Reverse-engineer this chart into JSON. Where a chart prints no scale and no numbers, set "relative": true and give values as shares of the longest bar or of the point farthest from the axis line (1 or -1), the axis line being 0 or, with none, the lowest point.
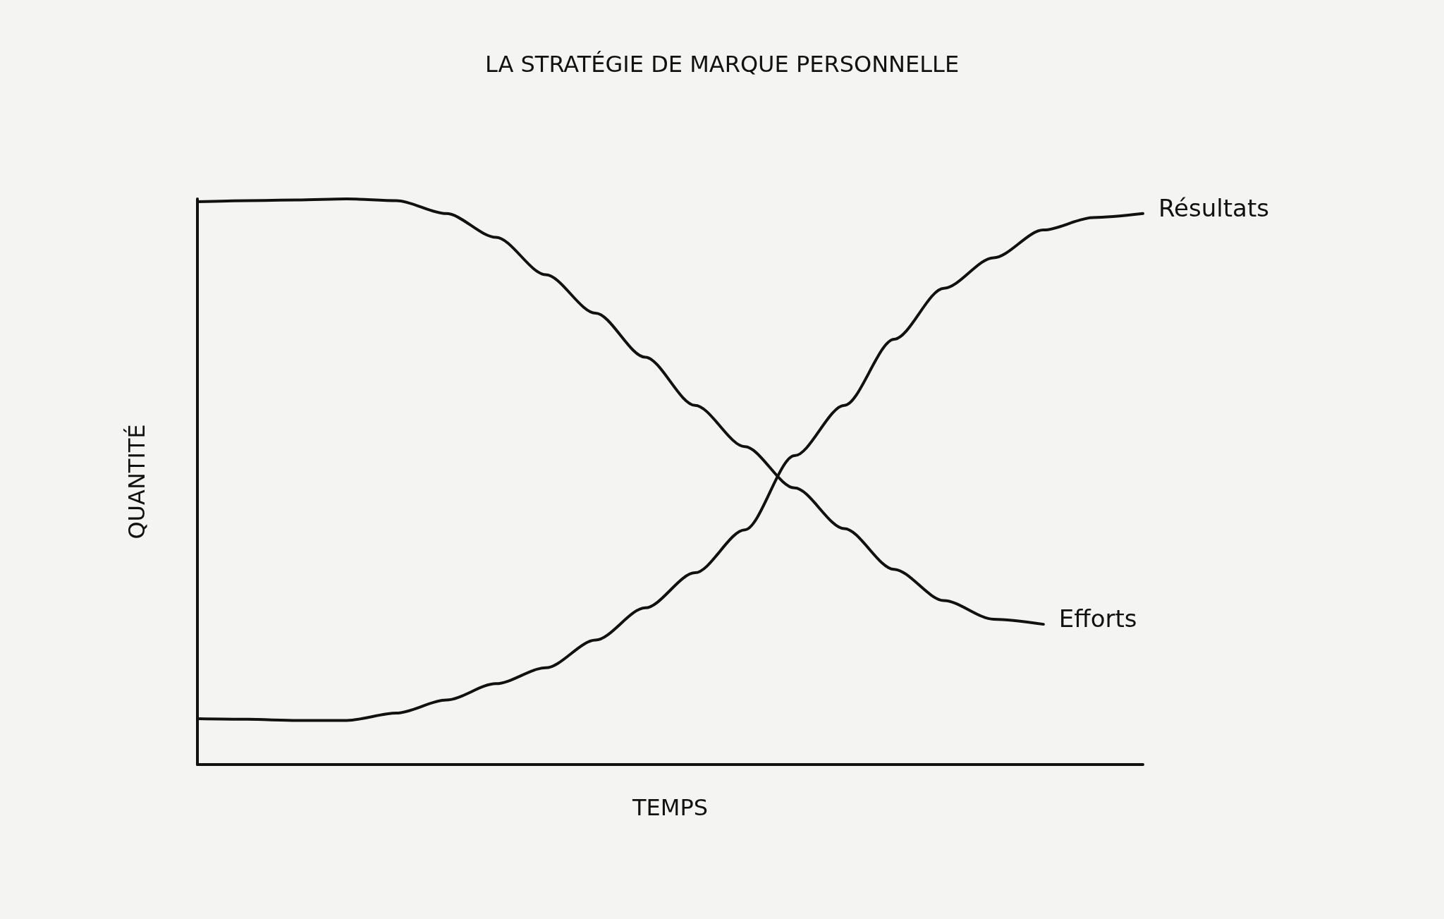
{
  "chart_data": {
    "type": "line",
    "title": "LA STRATÉGIE DE MARQUE PERSONNELLE",
    "xlabel": "TEMPS",
    "ylabel": "QUANTITÉ",
    "relative": true,
    "legend": false,
    "marker": "none",
    "line_style": "solid",
    "categories": [
      null,
      null,
      null,
      null,
      null,
      null,
      null,
      null,
      null,
      null,
      null,
      null,
      null,
      null,
      null,
      null,
      null,
      null,
      null,
      null
    ],
    "series": [
      {
        "name": "Résultats",
        "color": "#111111",
        "values": [
          0.081,
          0.08,
          0.078,
          0.078,
          0.091,
          0.114,
          0.143,
          0.171,
          0.22,
          0.277,
          0.339,
          0.415,
          0.546,
          0.635,
          0.752,
          0.842,
          0.896,
          0.945,
          0.967,
          0.974
        ]
      },
      {
        "name": "Efforts",
        "color": "#111111",
        "values": [
          0.995,
          0.997,
          0.998,
          1,
          0.997,
          0.974,
          0.932,
          0.866,
          0.798,
          0.72,
          0.635,
          0.562,
          0.489,
          0.417,
          0.345,
          0.29,
          0.257,
          0.248,
          null,
          null
        ]
      }
    ]
  }
}
